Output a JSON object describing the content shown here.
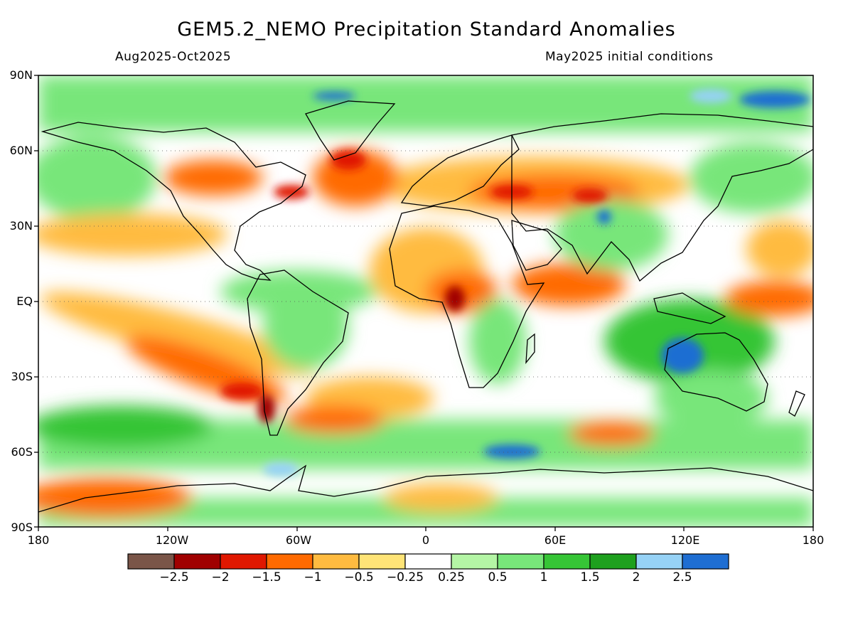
{
  "header": {
    "title": "GEM5.2_NEMO Precipitation Standard Anomalies",
    "period": "Aug2025-Oct2025",
    "init": "May2025 initial conditions"
  },
  "axes": {
    "lat_labels": [
      "90N",
      "60N",
      "30N",
      "EQ",
      "30S",
      "60S",
      "90S"
    ],
    "lon_labels": [
      "180",
      "120W",
      "60W",
      "0",
      "60E",
      "120E",
      "180"
    ]
  },
  "colorbar": {
    "colors": [
      "#7a5548",
      "#a00000",
      "#e01800",
      "#ff6a00",
      "#ffbb40",
      "#ffe477",
      "#ffffff",
      "#b4f5a5",
      "#78e67a",
      "#36c536",
      "#1ea01e",
      "#96d2f6",
      "#1e6ed2"
    ],
    "labels": [
      "−2.5",
      "−2",
      "−1.5",
      "−1",
      "−0.5",
      "−0.25",
      "0.25",
      "0.5",
      "1",
      "1.5",
      "2",
      "2.5"
    ]
  },
  "map": {
    "ocean_fill": "#ffffff",
    "graticule": "dotted"
  }
}
